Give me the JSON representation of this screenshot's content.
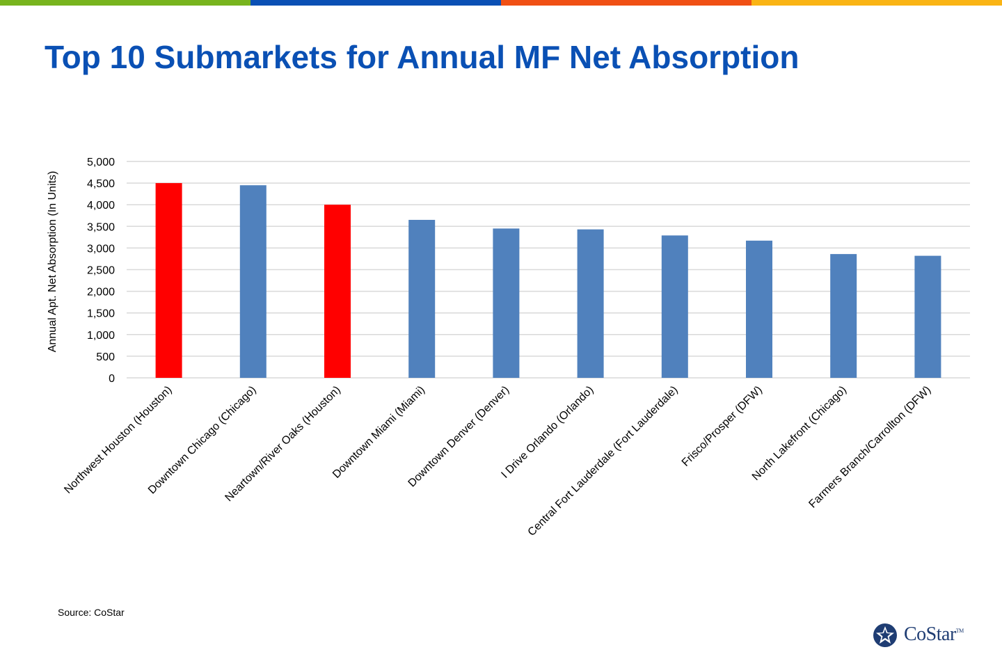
{
  "colors": {
    "stripes": [
      "#78b41e",
      "#0a50b4",
      "#f05014",
      "#fab414"
    ],
    "title": "#0a50b4",
    "highlight_bar": "#ff0000",
    "default_bar": "#5081bd",
    "grid": "#d9d9d9",
    "logo": "#1f3d73"
  },
  "slide": {
    "title": "Top 10 Submarkets for Annual MF Net Absorption",
    "source": "Source: CoStar",
    "logo_text": "CoStar",
    "logo_tm": "TM",
    "logo_icon": "costar-star-logo-icon"
  },
  "chart_data": {
    "type": "bar",
    "title": "",
    "xlabel": "",
    "ylabel": "Annual Apt. Net Absorption (In Units)",
    "ylim": [
      0,
      5000
    ],
    "yticks": [
      0,
      500,
      1000,
      1500,
      2000,
      2500,
      3000,
      3500,
      4000,
      4500,
      5000
    ],
    "ytick_labels": [
      "0",
      "500",
      "1,000",
      "1,500",
      "2,000",
      "2,500",
      "3,000",
      "3,500",
      "4,000",
      "4,500",
      "5,000"
    ],
    "grid": true,
    "legend": "none",
    "categories": [
      "Northwest Houston (Houston)",
      "Downtown Chicago (Chicago)",
      "Neartown/River Oaks (Houston)",
      "Downtown Miami (Miami)",
      "Downtown Denver (Denver)",
      "I Drive Orlando (Orlando)",
      "Central Fort Lauderdale (Fort Lauderdale)",
      "Frisco/Prosper (DFW)",
      "North Lakefront (Chicago)",
      "Farmers Branch/Carrollton (DFW)"
    ],
    "values": [
      4500,
      4450,
      4000,
      3650,
      3450,
      3430,
      3290,
      3170,
      2860,
      2820
    ],
    "highlighted": [
      true,
      false,
      true,
      false,
      false,
      false,
      false,
      false,
      false,
      false
    ]
  }
}
